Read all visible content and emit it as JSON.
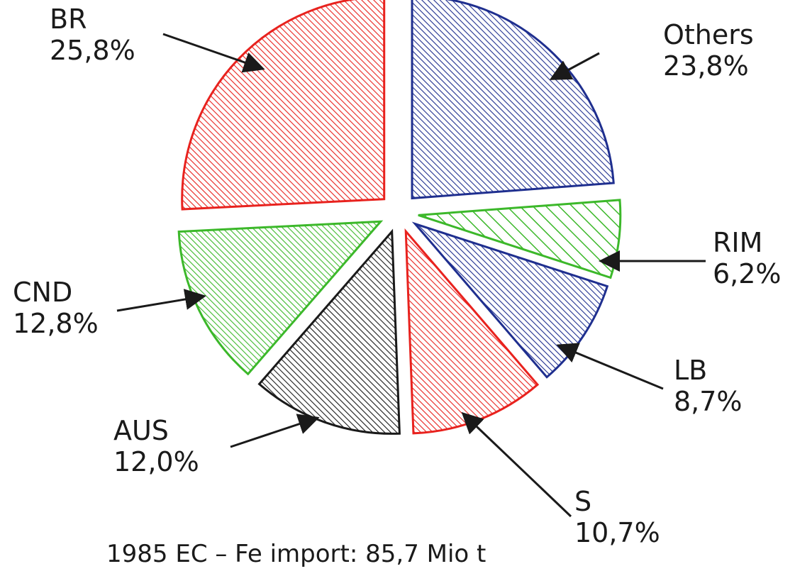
{
  "chart_data": {
    "type": "pie",
    "title": "1985 EC – Fe import: 85,7 Mio t",
    "start_angle_deg": 0,
    "direction": "clockwise",
    "slices": [
      {
        "label": "Others",
        "value": 23.8,
        "value_label": "23,8%",
        "color": "#1f2f8f"
      },
      {
        "label": "RIM",
        "value": 6.2,
        "value_label": "6,2%",
        "color": "#3cb82a"
      },
      {
        "label": "LB",
        "value": 8.7,
        "value_label": "8,7%",
        "color": "#1f2f8f"
      },
      {
        "label": "S",
        "value": 10.7,
        "value_label": "10,7%",
        "color": "#e8221e"
      },
      {
        "label": "AUS",
        "value": 12.0,
        "value_label": "12,0%",
        "color": "#1a1a1a"
      },
      {
        "label": "CND",
        "value": 12.8,
        "value_label": "12,8%",
        "color": "#3cb82a"
      },
      {
        "label": "BR",
        "value": 25.8,
        "value_label": "25,8%",
        "color": "#e8221e"
      }
    ]
  }
}
